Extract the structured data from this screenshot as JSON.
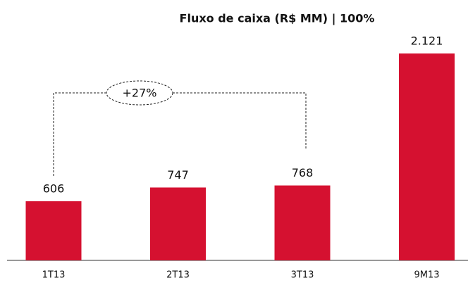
{
  "chart_data": {
    "type": "bar",
    "title": "Fluxo de caixa (R$ MM) | 100%",
    "categories": [
      "1T13",
      "2T13",
      "3T13",
      "9M13"
    ],
    "values": [
      606,
      747,
      768,
      2121
    ],
    "value_labels": [
      "606",
      "747",
      "768",
      "2.121"
    ],
    "color": "#d51130",
    "annotation": "+27%"
  }
}
